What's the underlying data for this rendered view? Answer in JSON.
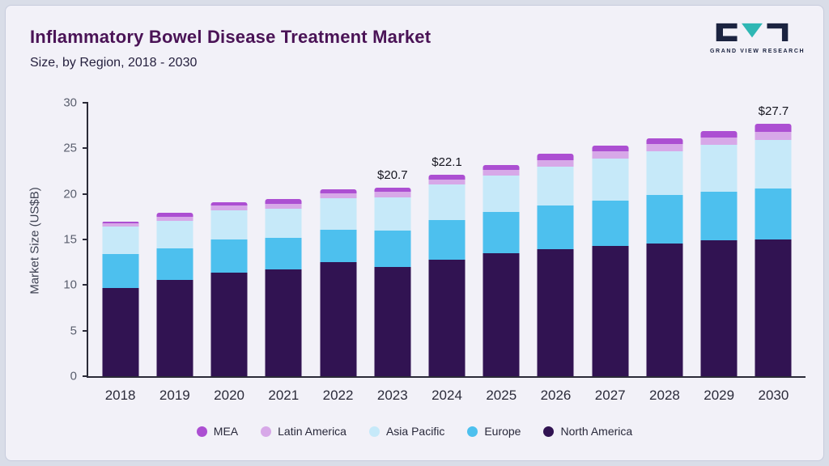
{
  "header": {
    "title": "Inflammatory Bowel Disease Treatment Market",
    "subtitle": "Size, by Region, 2018 - 2030",
    "logo_text": "GRAND VIEW RESEARCH"
  },
  "chart_data": {
    "type": "bar",
    "stacked": true,
    "title": "Inflammatory Bowel Disease Treatment Market Size, by Region, 2018 - 2030",
    "xlabel": "",
    "ylabel": "Market Size (US$B)",
    "ylim": [
      0,
      30
    ],
    "yticks": [
      0,
      5,
      10,
      15,
      20,
      25,
      30
    ],
    "grid": false,
    "legend_position": "bottom",
    "categories": [
      "2018",
      "2019",
      "2020",
      "2021",
      "2022",
      "2023",
      "2024",
      "2025",
      "2026",
      "2027",
      "2028",
      "2029",
      "2030"
    ],
    "series": [
      {
        "name": "North America",
        "color": "#311352",
        "values": [
          9.7,
          10.6,
          11.4,
          11.7,
          12.5,
          12.0,
          12.8,
          13.5,
          13.9,
          14.3,
          14.6,
          14.9,
          15.0
        ]
      },
      {
        "name": "Europe",
        "color": "#4dc0ee",
        "values": [
          3.7,
          3.4,
          3.6,
          3.5,
          3.6,
          4.0,
          4.3,
          4.5,
          4.8,
          5.0,
          5.3,
          5.3,
          5.6
        ]
      },
      {
        "name": "Asia Pacific",
        "color": "#c6e9f9",
        "values": [
          3.0,
          3.0,
          3.2,
          3.2,
          3.4,
          3.6,
          3.9,
          4.0,
          4.3,
          4.6,
          4.8,
          5.2,
          5.3
        ]
      },
      {
        "name": "Latin America",
        "color": "#d7a8e8",
        "values": [
          0.35,
          0.5,
          0.5,
          0.55,
          0.55,
          0.6,
          0.6,
          0.65,
          0.7,
          0.75,
          0.75,
          0.8,
          0.9
        ]
      },
      {
        "name": "MEA",
        "color": "#ac4fd2",
        "values": [
          0.25,
          0.4,
          0.4,
          0.45,
          0.45,
          0.5,
          0.5,
          0.55,
          0.7,
          0.65,
          0.65,
          0.7,
          0.9
        ]
      }
    ],
    "annotations": [
      {
        "category": "2023",
        "label": "$20.7"
      },
      {
        "category": "2024",
        "label": "$22.1"
      },
      {
        "category": "2030",
        "label": "$27.7"
      }
    ],
    "legend": [
      {
        "name": "MEA",
        "color": "#ac4fd2"
      },
      {
        "name": "Latin America",
        "color": "#d7a8e8"
      },
      {
        "name": "Asia Pacific",
        "color": "#c6e9f9"
      },
      {
        "name": "Europe",
        "color": "#4dc0ee"
      },
      {
        "name": "North America",
        "color": "#311352"
      }
    ]
  }
}
